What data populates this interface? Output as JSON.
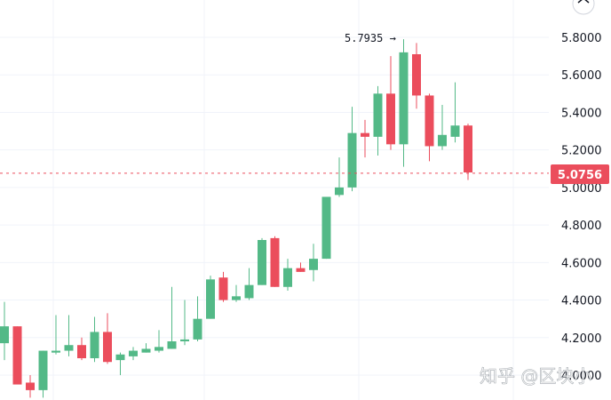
{
  "watermark": "知乎 @区块小",
  "colors": {
    "up": "#53b987",
    "down": "#eb4d5c",
    "grid": "#f0f3fa",
    "price_line": "#eb4d5c",
    "text": "#131722"
  },
  "chart_data": {
    "type": "candlestick",
    "title": "",
    "xlabel": "",
    "ylabel": "",
    "ylim": [
      3.98,
      5.88
    ],
    "y_ticks": [
      "5.8000",
      "5.6000",
      "5.4000",
      "5.2000",
      "5.0000",
      "4.8000",
      "4.6000",
      "4.4000",
      "4.2000",
      "4.0000"
    ],
    "grid": true,
    "current_price": "5.0756",
    "high_label": "5.7935 →",
    "candles": [
      {
        "o": 4.17,
        "h": 4.39,
        "l": 4.08,
        "c": 4.26
      },
      {
        "o": 4.26,
        "h": 4.26,
        "l": 3.95,
        "c": 3.95
      },
      {
        "o": 3.96,
        "h": 4.0,
        "l": 3.88,
        "c": 3.92
      },
      {
        "o": 3.92,
        "h": 4.13,
        "l": 3.88,
        "c": 4.13
      },
      {
        "o": 4.12,
        "h": 4.32,
        "l": 4.11,
        "c": 4.13
      },
      {
        "o": 4.13,
        "h": 4.32,
        "l": 4.1,
        "c": 4.16
      },
      {
        "o": 4.16,
        "h": 4.2,
        "l": 4.08,
        "c": 4.09
      },
      {
        "o": 4.09,
        "h": 4.31,
        "l": 4.07,
        "c": 4.23
      },
      {
        "o": 4.23,
        "h": 4.33,
        "l": 4.06,
        "c": 4.07
      },
      {
        "o": 4.08,
        "h": 4.12,
        "l": 4.0,
        "c": 4.11
      },
      {
        "o": 4.1,
        "h": 4.15,
        "l": 4.08,
        "c": 4.13
      },
      {
        "o": 4.12,
        "h": 4.17,
        "l": 4.12,
        "c": 4.14
      },
      {
        "o": 4.13,
        "h": 4.24,
        "l": 4.12,
        "c": 4.15
      },
      {
        "o": 4.14,
        "h": 4.47,
        "l": 4.14,
        "c": 4.18
      },
      {
        "o": 4.18,
        "h": 4.4,
        "l": 4.16,
        "c": 4.19
      },
      {
        "o": 4.19,
        "h": 4.42,
        "l": 4.18,
        "c": 4.3
      },
      {
        "o": 4.3,
        "h": 4.53,
        "l": 4.3,
        "c": 4.51
      },
      {
        "o": 4.52,
        "h": 4.55,
        "l": 4.39,
        "c": 4.4
      },
      {
        "o": 4.4,
        "h": 4.48,
        "l": 4.39,
        "c": 4.42
      },
      {
        "o": 4.41,
        "h": 4.57,
        "l": 4.4,
        "c": 4.48
      },
      {
        "o": 4.48,
        "h": 4.73,
        "l": 4.48,
        "c": 4.72
      },
      {
        "o": 4.73,
        "h": 4.74,
        "l": 4.47,
        "c": 4.47
      },
      {
        "o": 4.47,
        "h": 4.62,
        "l": 4.45,
        "c": 4.57
      },
      {
        "o": 4.57,
        "h": 4.6,
        "l": 4.55,
        "c": 4.55
      },
      {
        "o": 4.56,
        "h": 4.7,
        "l": 4.5,
        "c": 4.62
      },
      {
        "o": 4.62,
        "h": 4.95,
        "l": 4.62,
        "c": 4.95
      },
      {
        "o": 4.96,
        "h": 5.16,
        "l": 4.95,
        "c": 5.0
      },
      {
        "o": 5.0,
        "h": 5.43,
        "l": 4.98,
        "c": 5.29
      },
      {
        "o": 5.29,
        "h": 5.36,
        "l": 5.16,
        "c": 5.27
      },
      {
        "o": 5.27,
        "h": 5.54,
        "l": 5.17,
        "c": 5.5
      },
      {
        "o": 5.5,
        "h": 5.7,
        "l": 5.2,
        "c": 5.23
      },
      {
        "o": 5.23,
        "h": 5.79,
        "l": 5.11,
        "c": 5.72
      },
      {
        "o": 5.71,
        "h": 5.77,
        "l": 5.42,
        "c": 5.49
      },
      {
        "o": 5.49,
        "h": 5.5,
        "l": 5.14,
        "c": 5.22
      },
      {
        "o": 5.22,
        "h": 5.44,
        "l": 5.2,
        "c": 5.28
      },
      {
        "o": 5.27,
        "h": 5.56,
        "l": 5.24,
        "c": 5.33
      },
      {
        "o": 5.33,
        "h": 5.34,
        "l": 5.04,
        "c": 5.08
      }
    ]
  }
}
